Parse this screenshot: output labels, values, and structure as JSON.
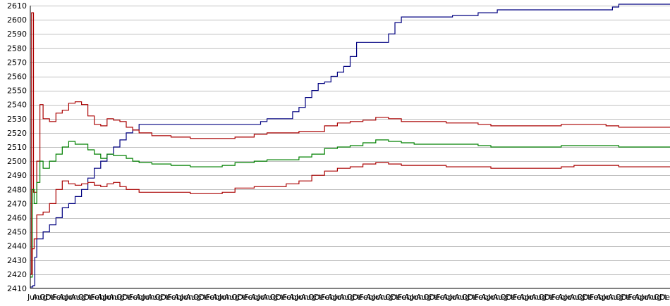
{
  "chart_data": {
    "type": "line",
    "title": "",
    "xlabel": "",
    "ylabel": "",
    "ylim": [
      2410,
      2610
    ],
    "yticks": [
      2410,
      2420,
      2430,
      2440,
      2450,
      2460,
      2470,
      2480,
      2490,
      2500,
      2510,
      2520,
      2530,
      2540,
      2550,
      2560,
      2570,
      2580,
      2590,
      2600,
      2610
    ],
    "grid": true,
    "legend": "none",
    "x_tick_labels": [
      "Jun",
      "Aug",
      "Oct",
      "Dec",
      "Feb",
      "Apr",
      "Jun",
      "Aug",
      "Oct",
      "Dec",
      "Feb",
      "Apr",
      "Jun",
      "Aug",
      "Oct",
      "Dec",
      "Feb",
      "Apr",
      "Jun",
      "Aug",
      "Oct",
      "Dec",
      "Feb",
      "Apr",
      "Jun",
      "Aug",
      "Oct",
      "Dec",
      "Feb",
      "Apr",
      "Jun",
      "Aug",
      "Oct",
      "Dec",
      "Feb",
      "Apr",
      "Jun",
      "Aug",
      "Oct",
      "Dec",
      "Feb",
      "Apr",
      "Jun",
      "Aug",
      "Oct",
      "Dec",
      "Feb",
      "Apr",
      "Jun",
      "Aug",
      "Oct",
      "Dec",
      "Feb",
      "Apr",
      "Jun",
      "Aug",
      "Oct",
      "Dec",
      "Feb",
      "Apr",
      "Jun",
      "Aug",
      "Oct",
      "Dec",
      "Feb",
      "Apr",
      "Jun",
      "Aug",
      "Oct",
      "Dec",
      "Feb",
      "Apr",
      "Jun",
      "Aug",
      "Oct",
      "Dec",
      "Feb",
      "Apr",
      "Jun",
      "Aug",
      "Oct",
      "Dec",
      "Feb",
      "Apr",
      "Jun",
      "Aug",
      "Oct",
      "Dec",
      "Feb",
      "Apr",
      "Jun",
      "Aug",
      "Oct",
      "Dec",
      "Feb",
      "Apr",
      "Jun",
      "Aug",
      "Oct",
      "Dec"
    ],
    "x_domain": [
      0,
      100
    ],
    "series": [
      {
        "color": "#000080",
        "points": [
          [
            0,
            2411
          ],
          [
            0.4,
            2412
          ],
          [
            0.7,
            2432
          ],
          [
            1,
            2445
          ],
          [
            2,
            2450
          ],
          [
            3,
            2455
          ],
          [
            4,
            2460
          ],
          [
            5,
            2467
          ],
          [
            6,
            2470
          ],
          [
            7,
            2475
          ],
          [
            8,
            2480
          ],
          [
            9,
            2488
          ],
          [
            10,
            2495
          ],
          [
            11,
            2500
          ],
          [
            12,
            2505
          ],
          [
            13,
            2510
          ],
          [
            14,
            2515
          ],
          [
            15,
            2520
          ],
          [
            16,
            2522
          ],
          [
            17,
            2526
          ],
          [
            20,
            2526
          ],
          [
            25,
            2526
          ],
          [
            30,
            2526
          ],
          [
            35,
            2526
          ],
          [
            36,
            2528
          ],
          [
            37,
            2530
          ],
          [
            40,
            2530
          ],
          [
            41,
            2535
          ],
          [
            42,
            2538
          ],
          [
            43,
            2545
          ],
          [
            44,
            2550
          ],
          [
            45,
            2555
          ],
          [
            46,
            2556
          ],
          [
            47,
            2560
          ],
          [
            48,
            2563
          ],
          [
            49,
            2567
          ],
          [
            50,
            2574
          ],
          [
            51,
            2584
          ],
          [
            55,
            2584
          ],
          [
            56,
            2590
          ],
          [
            57,
            2598
          ],
          [
            58,
            2602
          ],
          [
            65,
            2602
          ],
          [
            66,
            2603
          ],
          [
            69,
            2603
          ],
          [
            70,
            2605
          ],
          [
            72,
            2605
          ],
          [
            73,
            2607
          ],
          [
            80,
            2607
          ],
          [
            85,
            2607
          ],
          [
            90,
            2607
          ],
          [
            91,
            2609
          ],
          [
            92,
            2611
          ],
          [
            100,
            2611
          ]
        ]
      },
      {
        "color": "#aa0000",
        "points": [
          [
            0,
            2420
          ],
          [
            0.2,
            2605
          ],
          [
            0.5,
            2478
          ],
          [
            1,
            2500
          ],
          [
            1.5,
            2540
          ],
          [
            2,
            2530
          ],
          [
            3,
            2528
          ],
          [
            4,
            2534
          ],
          [
            5,
            2536
          ],
          [
            6,
            2541
          ],
          [
            7,
            2542
          ],
          [
            8,
            2540
          ],
          [
            9,
            2532
          ],
          [
            10,
            2526
          ],
          [
            11,
            2525
          ],
          [
            12,
            2530
          ],
          [
            13,
            2529
          ],
          [
            14,
            2528
          ],
          [
            15,
            2524
          ],
          [
            16,
            2522
          ],
          [
            17,
            2520
          ],
          [
            19,
            2518
          ],
          [
            22,
            2517
          ],
          [
            25,
            2516
          ],
          [
            28,
            2516
          ],
          [
            30,
            2516
          ],
          [
            32,
            2517
          ],
          [
            35,
            2519
          ],
          [
            37,
            2520
          ],
          [
            40,
            2520
          ],
          [
            42,
            2521
          ],
          [
            44,
            2521
          ],
          [
            46,
            2525
          ],
          [
            48,
            2527
          ],
          [
            50,
            2528
          ],
          [
            52,
            2529
          ],
          [
            54,
            2531
          ],
          [
            56,
            2530
          ],
          [
            58,
            2528
          ],
          [
            60,
            2528
          ],
          [
            65,
            2527
          ],
          [
            70,
            2526
          ],
          [
            72,
            2525
          ],
          [
            75,
            2525
          ],
          [
            78,
            2525
          ],
          [
            80,
            2525
          ],
          [
            83,
            2526
          ],
          [
            85,
            2526
          ],
          [
            88,
            2526
          ],
          [
            90,
            2525
          ],
          [
            92,
            2524
          ],
          [
            95,
            2524
          ],
          [
            100,
            2524
          ]
        ]
      },
      {
        "color": "#008000",
        "points": [
          [
            0,
            2418
          ],
          [
            0.3,
            2480
          ],
          [
            0.6,
            2470
          ],
          [
            1,
            2485
          ],
          [
            1.5,
            2500
          ],
          [
            2,
            2495
          ],
          [
            3,
            2500
          ],
          [
            4,
            2505
          ],
          [
            5,
            2510
          ],
          [
            6,
            2514
          ],
          [
            7,
            2512
          ],
          [
            8,
            2512
          ],
          [
            9,
            2508
          ],
          [
            10,
            2505
          ],
          [
            11,
            2502
          ],
          [
            12,
            2505
          ],
          [
            13,
            2504
          ],
          [
            14,
            2504
          ],
          [
            15,
            2502
          ],
          [
            16,
            2500
          ],
          [
            17,
            2499
          ],
          [
            19,
            2498
          ],
          [
            22,
            2497
          ],
          [
            25,
            2496
          ],
          [
            28,
            2496
          ],
          [
            30,
            2497
          ],
          [
            32,
            2499
          ],
          [
            35,
            2500
          ],
          [
            37,
            2501
          ],
          [
            40,
            2501
          ],
          [
            42,
            2503
          ],
          [
            44,
            2505
          ],
          [
            46,
            2509
          ],
          [
            48,
            2510
          ],
          [
            50,
            2511
          ],
          [
            52,
            2513
          ],
          [
            54,
            2515
          ],
          [
            56,
            2514
          ],
          [
            58,
            2513
          ],
          [
            60,
            2512
          ],
          [
            65,
            2512
          ],
          [
            70,
            2511
          ],
          [
            72,
            2510
          ],
          [
            75,
            2510
          ],
          [
            78,
            2510
          ],
          [
            80,
            2510
          ],
          [
            83,
            2511
          ],
          [
            85,
            2511
          ],
          [
            88,
            2511
          ],
          [
            90,
            2511
          ],
          [
            92,
            2510
          ],
          [
            95,
            2510
          ],
          [
            100,
            2510
          ]
        ]
      },
      {
        "color": "#aa0000",
        "points": [
          [
            0,
            2420
          ],
          [
            0.3,
            2438
          ],
          [
            0.6,
            2445
          ],
          [
            1,
            2462
          ],
          [
            2,
            2464
          ],
          [
            3,
            2470
          ],
          [
            4,
            2480
          ],
          [
            5,
            2486
          ],
          [
            6,
            2484
          ],
          [
            7,
            2483
          ],
          [
            8,
            2484
          ],
          [
            9,
            2485
          ],
          [
            10,
            2483
          ],
          [
            11,
            2482
          ],
          [
            12,
            2484
          ],
          [
            13,
            2485
          ],
          [
            14,
            2482
          ],
          [
            15,
            2480
          ],
          [
            16,
            2480
          ],
          [
            17,
            2478
          ],
          [
            19,
            2478
          ],
          [
            22,
            2478
          ],
          [
            25,
            2477
          ],
          [
            28,
            2477
          ],
          [
            30,
            2478
          ],
          [
            32,
            2481
          ],
          [
            35,
            2482
          ],
          [
            37,
            2482
          ],
          [
            40,
            2484
          ],
          [
            42,
            2486
          ],
          [
            44,
            2490
          ],
          [
            46,
            2493
          ],
          [
            48,
            2495
          ],
          [
            50,
            2496
          ],
          [
            52,
            2498
          ],
          [
            54,
            2499
          ],
          [
            56,
            2498
          ],
          [
            58,
            2497
          ],
          [
            60,
            2497
          ],
          [
            65,
            2496
          ],
          [
            70,
            2496
          ],
          [
            72,
            2495
          ],
          [
            75,
            2495
          ],
          [
            78,
            2495
          ],
          [
            80,
            2495
          ],
          [
            83,
            2496
          ],
          [
            85,
            2497
          ],
          [
            88,
            2497
          ],
          [
            90,
            2497
          ],
          [
            92,
            2496
          ],
          [
            95,
            2496
          ],
          [
            100,
            2496
          ]
        ]
      }
    ]
  }
}
